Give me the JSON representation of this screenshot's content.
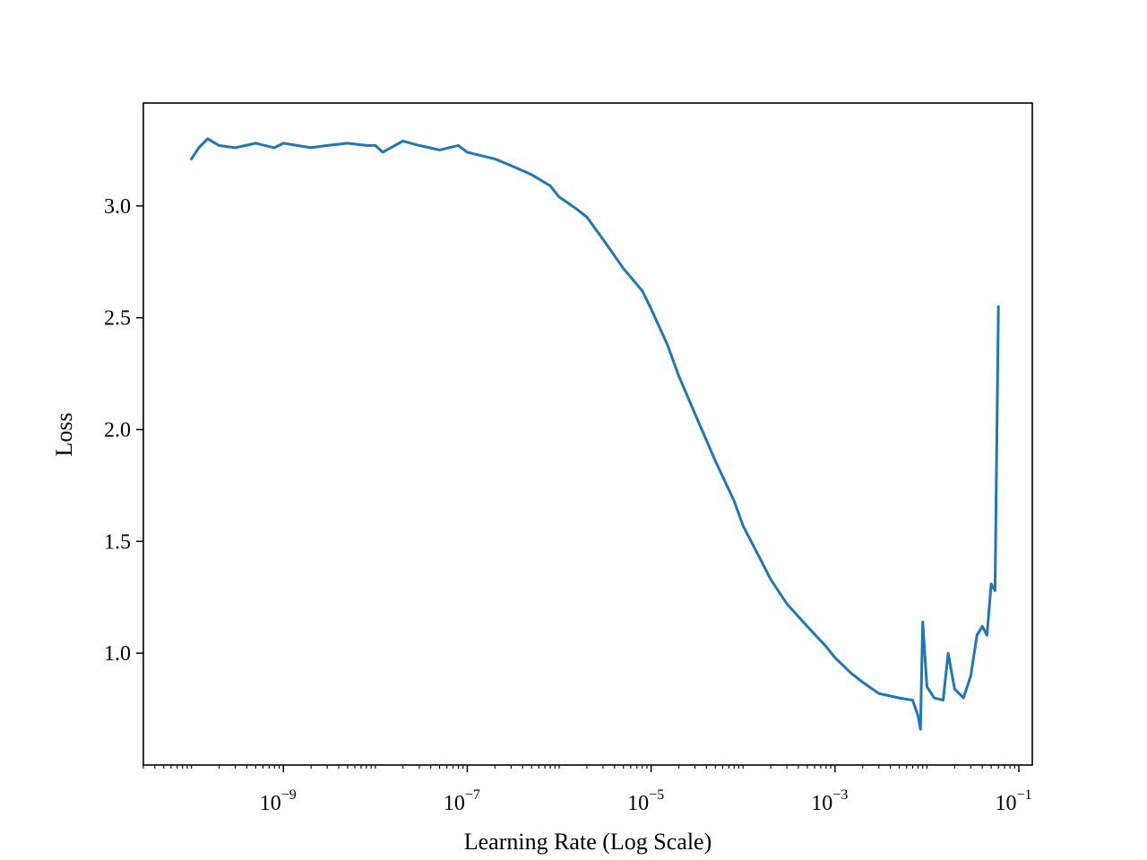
{
  "chart_data": {
    "type": "line",
    "title": "",
    "xlabel": "Learning Rate (Log Scale)",
    "ylabel": "Loss",
    "xscale": "log",
    "xlim": [
      3e-11,
      0.14
    ],
    "ylim": [
      0.5,
      3.46
    ],
    "grid": false,
    "legend": "none",
    "x_ticks": [
      {
        "base": "10",
        "exp": "−9",
        "value": 1e-09
      },
      {
        "base": "10",
        "exp": "−7",
        "value": 1e-07
      },
      {
        "base": "10",
        "exp": "−5",
        "value": 1e-05
      },
      {
        "base": "10",
        "exp": "−3",
        "value": 0.001
      },
      {
        "base": "10",
        "exp": "−1",
        "value": 0.1
      }
    ],
    "y_ticks": [
      "1.0",
      "1.5",
      "2.0",
      "2.5",
      "3.0"
    ],
    "series": [
      {
        "name": "",
        "color": "#1f77b4",
        "x": [
          1e-10,
          1.2e-10,
          1.5e-10,
          2e-10,
          3e-10,
          5e-10,
          8e-10,
          1e-09,
          2e-09,
          3e-09,
          5e-09,
          8e-09,
          1e-08,
          1.2e-08,
          2e-08,
          3e-08,
          5e-08,
          8e-08,
          1e-07,
          2e-07,
          3e-07,
          5e-07,
          8e-07,
          1e-06,
          1.5e-06,
          2e-06,
          3e-06,
          5e-06,
          8e-06,
          1e-05,
          1.5e-05,
          2e-05,
          3e-05,
          5e-05,
          8e-05,
          0.0001,
          0.00015,
          0.0002,
          0.0003,
          0.0005,
          0.0008,
          0.001,
          0.0015,
          0.002,
          0.003,
          0.005,
          0.007,
          0.008,
          0.0085,
          0.009,
          0.01,
          0.012,
          0.015,
          0.017,
          0.02,
          0.025,
          0.03,
          0.035,
          0.04,
          0.045,
          0.05,
          0.055,
          0.06
        ],
        "y": [
          3.21,
          3.26,
          3.3,
          3.27,
          3.26,
          3.28,
          3.26,
          3.28,
          3.26,
          3.27,
          3.28,
          3.27,
          3.27,
          3.24,
          3.29,
          3.27,
          3.25,
          3.27,
          3.24,
          3.21,
          3.18,
          3.14,
          3.09,
          3.04,
          2.99,
          2.95,
          2.85,
          2.72,
          2.62,
          2.54,
          2.38,
          2.24,
          2.07,
          1.86,
          1.68,
          1.57,
          1.43,
          1.33,
          1.22,
          1.12,
          1.03,
          0.98,
          0.91,
          0.87,
          0.82,
          0.8,
          0.79,
          0.72,
          0.66,
          1.14,
          0.85,
          0.8,
          0.79,
          1.0,
          0.84,
          0.8,
          0.9,
          1.08,
          1.12,
          1.08,
          1.31,
          1.28,
          2.55
        ]
      }
    ]
  }
}
